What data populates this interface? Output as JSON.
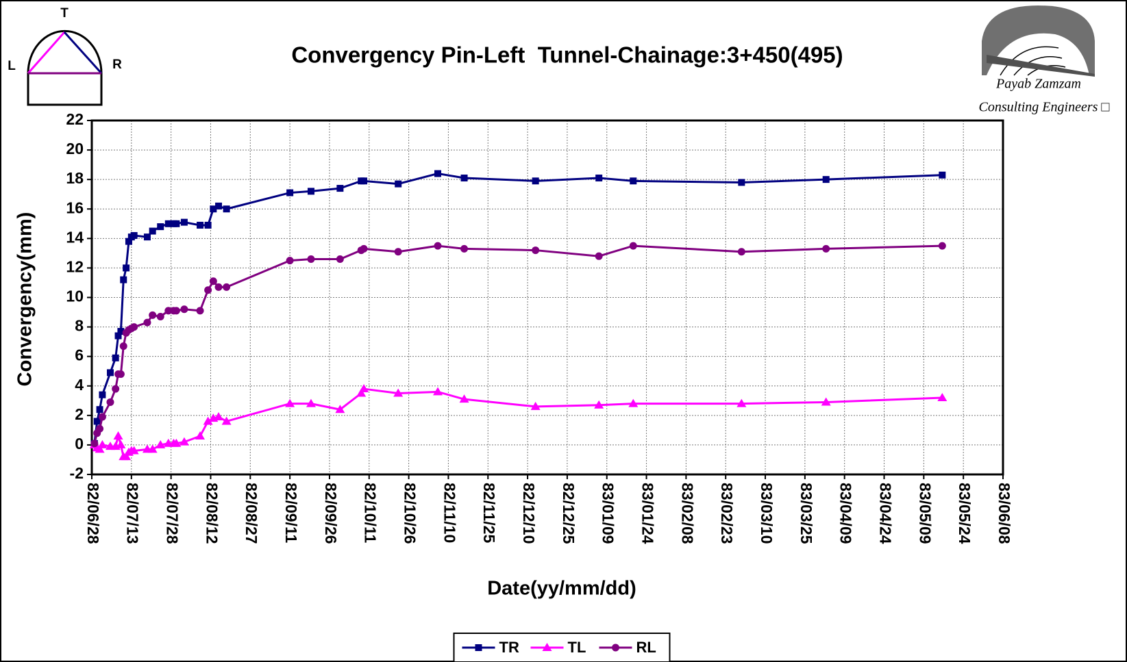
{
  "chart_data": {
    "type": "line",
    "title": "Convergency Pin-Left  Tunnel-Chainage:3+450(495)",
    "xlabel": "Date(yy/mm/dd)",
    "ylabel": "Convergency(mm)",
    "x": [
      "82/06/29",
      "82/06/30",
      "82/07/01",
      "82/07/02",
      "82/07/05",
      "82/07/07",
      "82/07/08",
      "82/07/09",
      "82/07/10",
      "82/07/11",
      "82/07/12",
      "82/07/13",
      "82/07/14",
      "82/07/19",
      "82/07/21",
      "82/07/24",
      "82/07/27",
      "82/07/29",
      "82/07/30",
      "82/08/02",
      "82/08/08",
      "82/08/11",
      "82/08/13",
      "82/08/15",
      "82/08/18",
      "82/09/11",
      "82/09/19",
      "82/09/30",
      "82/10/08",
      "82/10/09",
      "82/10/22",
      "82/11/06",
      "82/11/16",
      "82/12/13",
      "83/01/06",
      "83/01/19",
      "83/03/01",
      "83/04/02",
      "83/05/16"
    ],
    "series": [
      {
        "name": "TR",
        "color": "#000080",
        "marker": "square",
        "values": [
          0.1,
          1.6,
          2.4,
          3.4,
          4.9,
          5.9,
          7.4,
          7.7,
          11.2,
          12.0,
          13.8,
          14.1,
          14.2,
          14.1,
          14.5,
          14.8,
          15.0,
          15.0,
          15.0,
          15.1,
          14.9,
          14.9,
          16.0,
          16.2,
          16.0,
          17.1,
          17.2,
          17.4,
          17.9,
          17.9,
          17.7,
          18.4,
          18.1,
          17.9,
          18.1,
          17.9,
          17.8,
          18.0,
          18.3
        ]
      },
      {
        "name": "TL",
        "color": "#ff00ff",
        "marker": "triangle",
        "values": [
          0.0,
          -0.2,
          -0.3,
          0.0,
          -0.1,
          -0.1,
          0.6,
          0.0,
          -0.8,
          -0.8,
          -0.5,
          -0.4,
          -0.4,
          -0.3,
          -0.3,
          0.0,
          0.1,
          0.1,
          0.1,
          0.2,
          0.6,
          1.6,
          1.8,
          1.9,
          1.6,
          2.8,
          2.8,
          2.4,
          3.5,
          3.8,
          3.5,
          3.6,
          3.1,
          2.6,
          2.7,
          2.8,
          2.8,
          2.9,
          3.2
        ]
      },
      {
        "name": "RL",
        "color": "#800080",
        "marker": "circle",
        "values": [
          0.1,
          0.8,
          1.1,
          1.9,
          2.9,
          3.8,
          4.8,
          4.8,
          6.7,
          7.6,
          7.8,
          7.9,
          8.0,
          8.3,
          8.8,
          8.7,
          9.1,
          9.1,
          9.1,
          9.2,
          9.1,
          10.5,
          11.1,
          10.7,
          10.7,
          12.5,
          12.6,
          12.6,
          13.2,
          13.3,
          13.1,
          13.5,
          13.3,
          13.2,
          12.8,
          13.5,
          13.1,
          13.3,
          13.5
        ]
      }
    ],
    "xlim": [
      "82/06/28",
      "83/06/08"
    ],
    "xticks": [
      "82/06/28",
      "82/07/13",
      "82/07/28",
      "82/08/12",
      "82/08/27",
      "82/09/11",
      "82/09/26",
      "82/10/11",
      "82/10/26",
      "82/11/10",
      "82/11/25",
      "82/12/10",
      "82/12/25",
      "83/01/09",
      "83/01/24",
      "83/02/08",
      "83/02/23",
      "83/03/10",
      "83/03/25",
      "83/04/09",
      "83/04/24",
      "83/05/09",
      "83/05/24",
      "83/06/08"
    ],
    "ylim": [
      -2,
      22
    ],
    "yticks": [
      -2,
      0,
      2,
      4,
      6,
      8,
      10,
      12,
      14,
      16,
      18,
      20,
      22
    ],
    "grid": true,
    "legend": "bottom"
  },
  "diagram": {
    "top": "T",
    "left": "L",
    "right": "R"
  },
  "logo": {
    "line1": "Payab Zamzam",
    "line2": "Consulting Engineers □"
  }
}
